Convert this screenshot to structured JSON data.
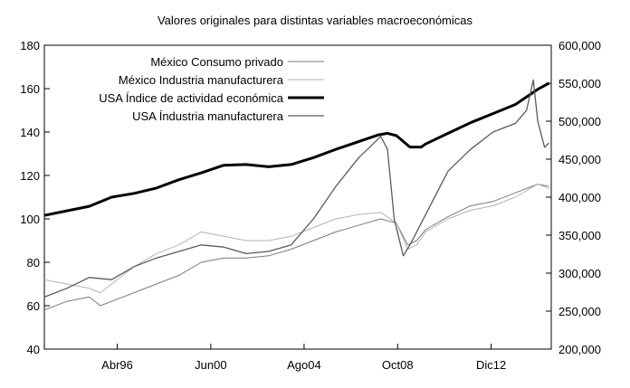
{
  "chart_data": {
    "type": "line",
    "title": "Valores originales para distintas variables macroeconómicas",
    "x_range": [
      1993.0,
      2015.6
    ],
    "x_ticks": [
      {
        "label": "Abr96",
        "value": 1996.25
      },
      {
        "label": "Jun00",
        "value": 2000.42
      },
      {
        "label": "Ago04",
        "value": 2004.58
      },
      {
        "label": "Oct08",
        "value": 2008.75
      },
      {
        "label": "Dic12",
        "value": 2012.92
      }
    ],
    "y_left": {
      "range": [
        40,
        180
      ],
      "ticks": [
        "40",
        "60",
        "80",
        "100",
        "120",
        "140",
        "160",
        "180"
      ]
    },
    "y_right": {
      "range": [
        200000,
        600000
      ],
      "ticks": [
        "200,000",
        "250,000",
        "300,000",
        "350,000",
        "400,000",
        "450,000",
        "500,000",
        "550,000",
        "600,000"
      ]
    },
    "legend_position": "top-right",
    "series": [
      {
        "name": "México Consumo privado",
        "axis": "left",
        "color": "#7a7a7a",
        "style": "thin",
        "x": [
          1993.0,
          1994.0,
          1995.0,
          1995.5,
          1996.0,
          1997.0,
          1998.0,
          1999.0,
          2000.0,
          2001.0,
          2002.0,
          2003.0,
          2004.0,
          2005.0,
          2006.0,
          2007.0,
          2008.0,
          2008.7,
          2009.2,
          2009.6,
          2010.0,
          2011.0,
          2012.0,
          2013.0,
          2014.0,
          2015.0,
          2015.5
        ],
        "y": [
          58,
          62,
          64,
          60,
          62,
          66,
          70,
          74,
          80,
          82,
          82,
          83,
          86,
          90,
          94,
          97,
          100,
          98,
          88,
          90,
          95,
          101,
          106,
          108,
          112,
          116,
          115
        ]
      },
      {
        "name": "México Industria manufacturera",
        "axis": "left",
        "color": "#b4b4b4",
        "style": "thin",
        "x": [
          1993.0,
          1994.0,
          1995.0,
          1995.5,
          1996.0,
          1997.0,
          1998.0,
          1999.0,
          2000.0,
          2001.0,
          2002.0,
          2003.0,
          2004.0,
          2005.0,
          2006.0,
          2007.0,
          2008.0,
          2008.7,
          2009.2,
          2009.6,
          2010.0,
          2011.0,
          2012.0,
          2013.0,
          2014.0,
          2015.0,
          2015.5
        ],
        "y": [
          72,
          70,
          68,
          66,
          70,
          78,
          84,
          88,
          94,
          92,
          90,
          90,
          92,
          96,
          100,
          102,
          103,
          98,
          86,
          88,
          94,
          100,
          104,
          106,
          110,
          116,
          114
        ]
      },
      {
        "name": "USA Índice de actividad económica",
        "axis": "right",
        "color": "#000000",
        "style": "thick",
        "x": [
          1993.0,
          1994.0,
          1995.0,
          1996.0,
          1997.0,
          1998.0,
          1999.0,
          2000.0,
          2001.0,
          2002.0,
          2003.0,
          2004.0,
          2005.0,
          2006.0,
          2007.0,
          2007.9,
          2008.3,
          2008.7,
          2009.3,
          2009.8,
          2010.0,
          2011.0,
          2012.0,
          2013.0,
          2014.0,
          2015.0,
          2015.5
        ],
        "y": [
          376000,
          382000,
          388000,
          400000,
          405000,
          412000,
          423000,
          432000,
          442000,
          443000,
          440000,
          443000,
          452000,
          463000,
          473000,
          482000,
          484000,
          481000,
          466000,
          466000,
          470000,
          484000,
          498000,
          510000,
          522000,
          542000,
          550000
        ]
      },
      {
        "name": "USA Índustria manufacturera",
        "axis": "left",
        "color": "#5a5a5a",
        "style": "medium",
        "x": [
          1993.0,
          1994.0,
          1995.0,
          1996.0,
          1997.0,
          1998.0,
          1999.0,
          2000.0,
          2001.0,
          2002.0,
          2003.0,
          2004.0,
          2005.0,
          2006.0,
          2007.0,
          2008.0,
          2008.3,
          2008.6,
          2009.0,
          2009.3,
          2009.8,
          2010.5,
          2011.0,
          2012.0,
          2013.0,
          2014.0,
          2014.5,
          2014.8,
          2015.0,
          2015.3,
          2015.5
        ],
        "y": [
          64,
          68,
          73,
          72,
          78,
          82,
          85,
          88,
          87,
          84,
          85,
          88,
          100,
          115,
          128,
          138,
          132,
          100,
          83,
          88,
          98,
          112,
          122,
          132,
          140,
          144,
          150,
          164,
          145,
          133,
          135
        ]
      }
    ]
  }
}
